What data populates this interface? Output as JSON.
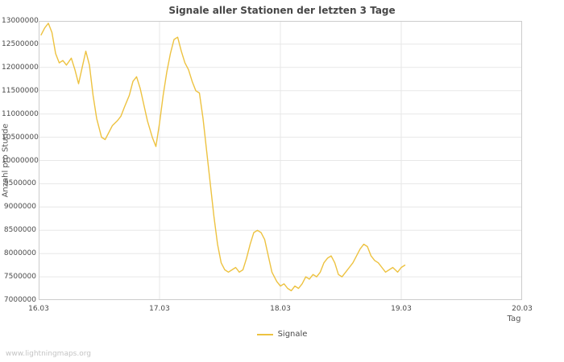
{
  "page": {
    "watermark": "www.lightningmaps.org"
  },
  "chart_data": {
    "type": "line",
    "title": "Signale aller Stationen der letzten 3 Tage",
    "xlabel": "Tag",
    "ylabel": "Anzahl pro Stunde",
    "xlim": [
      16.03,
      20.03
    ],
    "ylim": [
      7000000,
      13000000
    ],
    "grid": true,
    "legend_position": "bottom",
    "x_ticks": [
      {
        "value": 16.03,
        "label": "16.03"
      },
      {
        "value": 17.03,
        "label": "17.03"
      },
      {
        "value": 18.03,
        "label": "18.03"
      },
      {
        "value": 19.03,
        "label": "19.03"
      },
      {
        "value": 20.03,
        "label": "20.03"
      }
    ],
    "y_ticks": [
      {
        "value": 7000000,
        "label": "7000000"
      },
      {
        "value": 7500000,
        "label": "7500000"
      },
      {
        "value": 8000000,
        "label": "8000000"
      },
      {
        "value": 8500000,
        "label": "8500000"
      },
      {
        "value": 9000000,
        "label": "9000000"
      },
      {
        "value": 9500000,
        "label": "9500000"
      },
      {
        "value": 10000000,
        "label": "10000000"
      },
      {
        "value": 10500000,
        "label": "10500000"
      },
      {
        "value": 11000000,
        "label": "11000000"
      },
      {
        "value": 11500000,
        "label": "11500000"
      },
      {
        "value": 12000000,
        "label": "12000000"
      },
      {
        "value": 12500000,
        "label": "12500000"
      },
      {
        "value": 13000000,
        "label": "13000000"
      }
    ],
    "series": [
      {
        "name": "Signale",
        "color": "#edc240",
        "x": [
          16.05,
          16.08,
          16.11,
          16.14,
          16.17,
          16.2,
          16.23,
          16.26,
          16.3,
          16.33,
          16.36,
          16.39,
          16.42,
          16.45,
          16.48,
          16.51,
          16.55,
          16.58,
          16.61,
          16.64,
          16.68,
          16.71,
          16.74,
          16.78,
          16.81,
          16.84,
          16.87,
          16.9,
          16.93,
          16.97,
          17.0,
          17.03,
          17.06,
          17.09,
          17.12,
          17.15,
          17.18,
          17.21,
          17.24,
          17.27,
          17.3,
          17.33,
          17.36,
          17.39,
          17.42,
          17.45,
          17.48,
          17.51,
          17.54,
          17.57,
          17.6,
          17.63,
          17.66,
          17.69,
          17.72,
          17.75,
          17.78,
          17.81,
          17.84,
          17.87,
          17.9,
          17.93,
          17.96,
          18.0,
          18.03,
          18.06,
          18.09,
          18.12,
          18.15,
          18.18,
          18.21,
          18.24,
          18.27,
          18.3,
          18.33,
          18.36,
          18.39,
          18.42,
          18.45,
          18.48,
          18.51,
          18.54,
          18.57,
          18.6,
          18.63,
          18.66,
          18.69,
          18.72,
          18.75,
          18.78,
          18.81,
          18.84,
          18.87,
          18.9,
          18.93,
          18.96,
          19.0,
          19.03,
          19.06
        ],
        "y": [
          12700000,
          12850000,
          12950000,
          12750000,
          12300000,
          12100000,
          12150000,
          12050000,
          12200000,
          11950000,
          11650000,
          12000000,
          12350000,
          12050000,
          11400000,
          10900000,
          10500000,
          10450000,
          10600000,
          10750000,
          10850000,
          10950000,
          11150000,
          11400000,
          11700000,
          11800000,
          11550000,
          11200000,
          10850000,
          10500000,
          10300000,
          10800000,
          11400000,
          11900000,
          12300000,
          12600000,
          12650000,
          12350000,
          12100000,
          11950000,
          11700000,
          11500000,
          11450000,
          10900000,
          10200000,
          9500000,
          8800000,
          8200000,
          7800000,
          7650000,
          7600000,
          7650000,
          7700000,
          7600000,
          7650000,
          7900000,
          8200000,
          8450000,
          8500000,
          8450000,
          8300000,
          7950000,
          7600000,
          7400000,
          7300000,
          7350000,
          7250000,
          7200000,
          7300000,
          7250000,
          7350000,
          7500000,
          7450000,
          7550000,
          7500000,
          7600000,
          7800000,
          7900000,
          7950000,
          7800000,
          7550000,
          7500000,
          7600000,
          7700000,
          7800000,
          7950000,
          8100000,
          8200000,
          8150000,
          7950000,
          7850000,
          7800000,
          7700000,
          7600000,
          7650000,
          7700000,
          7600000,
          7700000,
          7750000
        ]
      }
    ]
  }
}
